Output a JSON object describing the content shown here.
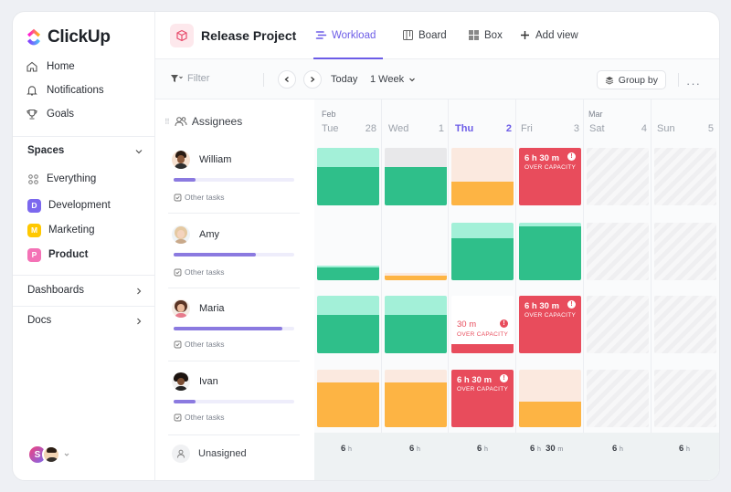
{
  "app": {
    "brand": "ClickUp"
  },
  "sidebar": {
    "nav": [
      {
        "label": "Home",
        "icon": "home-icon"
      },
      {
        "label": "Notifications",
        "icon": "bell-icon"
      },
      {
        "label": "Goals",
        "icon": "trophy-icon"
      }
    ],
    "spaces_title": "Spaces",
    "spaces": [
      {
        "label": "Everything",
        "icon": "grid-dots-icon"
      },
      {
        "label": "Development",
        "letter": "D",
        "color": "#7b68ee"
      },
      {
        "label": "Marketing",
        "letter": "M",
        "color": "#ffc800"
      },
      {
        "label": "Product",
        "letter": "P",
        "color": "#f472b6"
      }
    ],
    "dashboards": "Dashboards",
    "docs": "Docs",
    "user_initial": "S"
  },
  "header": {
    "project_title": "Release Project",
    "views": [
      {
        "label": "Workload",
        "icon": "workload-icon",
        "active": true
      },
      {
        "label": "Board",
        "icon": "board-icon"
      },
      {
        "label": "Box",
        "icon": "box-icon"
      },
      {
        "label": "Add view",
        "icon": "plus-icon"
      }
    ]
  },
  "toolbar": {
    "filter": "Filter",
    "today": "Today",
    "range": "1 Week",
    "group_by": "Group by"
  },
  "assignees": {
    "title": "Assignees",
    "other_tasks": "Other tasks",
    "people": [
      {
        "name": "William",
        "progress": 0.18
      },
      {
        "name": "Amy",
        "progress": 0.68
      },
      {
        "name": "Maria",
        "progress": 0.9
      },
      {
        "name": "Ivan",
        "progress": 0.18
      }
    ],
    "unassigned": "Unasigned"
  },
  "calendar": {
    "months": [
      {
        "label": "Feb"
      },
      {
        "label": "Mar"
      }
    ],
    "days": [
      {
        "name": "Tue",
        "num": "28"
      },
      {
        "name": "Wed",
        "num": "1"
      },
      {
        "name": "Thu",
        "num": "2",
        "today": true
      },
      {
        "name": "Fri",
        "num": "3"
      },
      {
        "name": "Sat",
        "num": "4"
      },
      {
        "name": "Sun",
        "num": "5"
      }
    ],
    "over_capacity": "OVER CAPACITY",
    "overload_labels": {
      "william_fri": "6 h 30 m",
      "maria_thu": "30 m",
      "maria_fri": "6 h 30 m",
      "ivan_thu": "6 h 30 m"
    },
    "totals": [
      {
        "value": "6",
        "unit": "h"
      },
      {
        "value": "6",
        "unit": "h"
      },
      {
        "value": "6",
        "unit": "h"
      },
      {
        "value": "6",
        "unit": "h",
        "extra": "30",
        "extra_unit": "m"
      },
      {
        "value": "6",
        "unit": "h"
      },
      {
        "value": "6",
        "unit": "h"
      }
    ]
  }
}
